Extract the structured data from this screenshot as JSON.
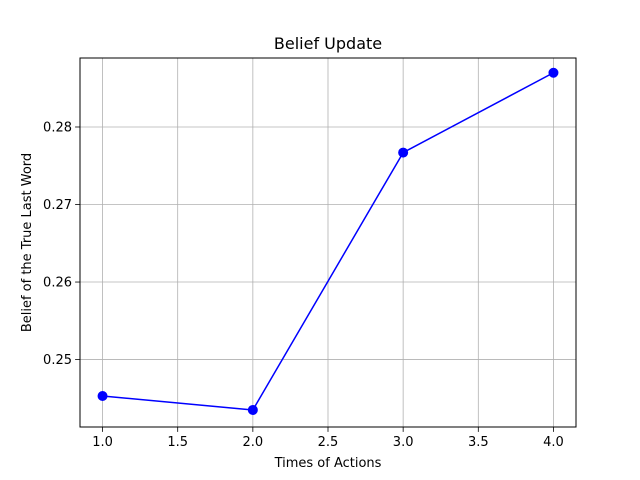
{
  "chart_data": {
    "type": "line",
    "title": "Belief Update",
    "xlabel": "Times of Actions",
    "ylabel": "Belief of the True Last Word",
    "x": [
      1.0,
      2.0,
      3.0,
      4.0
    ],
    "series": [
      {
        "values": [
          0.2453,
          0.2435,
          0.2767,
          0.287
        ],
        "color": "#0000ff",
        "marker": "circle"
      }
    ],
    "xlim": [
      0.85,
      4.15
    ],
    "ylim": [
      0.2413,
      0.2889
    ],
    "xticks": [
      1.0,
      1.5,
      2.0,
      2.5,
      3.0,
      3.5,
      4.0
    ],
    "xtick_labels": [
      "1.0",
      "1.5",
      "2.0",
      "2.5",
      "3.0",
      "3.5",
      "4.0"
    ],
    "yticks": [
      0.25,
      0.26,
      0.27,
      0.28
    ],
    "ytick_labels": [
      "0.25",
      "0.26",
      "0.27",
      "0.28"
    ],
    "grid": true
  }
}
